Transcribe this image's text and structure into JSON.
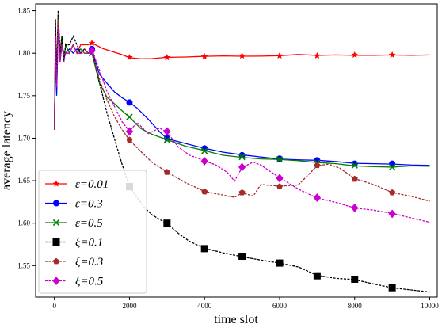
{
  "chart_data": {
    "type": "line",
    "xlabel": "time slot",
    "ylabel": "average latency",
    "xlim": [
      -500,
      10200
    ],
    "ylim": [
      1.513,
      1.858
    ],
    "x_ticks": [
      0,
      2000,
      4000,
      6000,
      8000,
      10000
    ],
    "y_ticks": [
      1.55,
      1.6,
      1.65,
      1.7,
      1.75,
      1.8,
      1.85
    ],
    "x_tick_labels": [
      "0",
      "2000",
      "4000",
      "6000",
      "8000",
      "10000"
    ],
    "y_tick_labels": [
      "1.55",
      "1.60",
      "1.65",
      "1.70",
      "1.75",
      "1.80",
      "1.85"
    ],
    "grid": false,
    "legend_position": "lower-left",
    "series": [
      {
        "name": "ε=0.01",
        "color": "#ff0000",
        "marker": "star",
        "linestyle": "solid",
        "x": [
          0,
          30,
          60,
          100,
          150,
          200,
          250,
          300,
          400,
          500,
          600,
          700,
          800,
          900,
          1000,
          1100,
          1300,
          1500,
          1800,
          2000,
          2300,
          2600,
          3000,
          3500,
          4000,
          4500,
          5000,
          5500,
          6000,
          6500,
          7000,
          7500,
          8000,
          8500,
          9000,
          9500,
          10000
        ],
        "y": [
          1.71,
          1.83,
          1.77,
          1.84,
          1.8,
          1.82,
          1.79,
          1.81,
          1.8,
          1.81,
          1.8,
          1.81,
          1.81,
          1.81,
          1.812,
          1.81,
          1.805,
          1.802,
          1.798,
          1.795,
          1.794,
          1.794,
          1.795,
          1.795,
          1.796,
          1.797,
          1.797,
          1.797,
          1.797,
          1.798,
          1.797,
          1.798,
          1.798,
          1.798,
          1.798,
          1.797,
          1.798
        ],
        "marker_x": [
          1000,
          2000,
          3000,
          4000,
          5000,
          6000,
          7000,
          8000,
          9000
        ],
        "marker_y": [
          1.812,
          1.795,
          1.795,
          1.796,
          1.797,
          1.797,
          1.797,
          1.798,
          1.798
        ]
      },
      {
        "name": "ε=0.3",
        "color": "#0000ff",
        "marker": "circle",
        "linestyle": "solid",
        "x": [
          0,
          30,
          60,
          100,
          150,
          200,
          250,
          300,
          400,
          500,
          600,
          700,
          800,
          900,
          1000,
          1200,
          1400,
          1600,
          1800,
          2000,
          2200,
          2500,
          2800,
          3000,
          3500,
          4000,
          4500,
          5000,
          5500,
          6000,
          6500,
          7000,
          7500,
          8000,
          8500,
          9000,
          9500,
          10000
        ],
        "y": [
          1.71,
          1.8,
          1.75,
          1.83,
          1.79,
          1.81,
          1.8,
          1.8,
          1.805,
          1.8,
          1.805,
          1.8,
          1.805,
          1.8,
          1.805,
          1.775,
          1.765,
          1.755,
          1.748,
          1.742,
          1.735,
          1.722,
          1.708,
          1.7,
          1.694,
          1.688,
          1.683,
          1.68,
          1.678,
          1.676,
          1.675,
          1.674,
          1.672,
          1.67,
          1.67,
          1.67,
          1.669,
          1.668
        ],
        "marker_x": [
          1000,
          2000,
          3000,
          4000,
          5000,
          6000,
          7000,
          8000,
          9000
        ],
        "marker_y": [
          1.805,
          1.742,
          1.7,
          1.688,
          1.68,
          1.676,
          1.674,
          1.67,
          1.67
        ]
      },
      {
        "name": "ε=0.5",
        "color": "#008000",
        "marker": "x",
        "linestyle": "solid",
        "x": [
          0,
          30,
          60,
          100,
          150,
          200,
          250,
          300,
          400,
          500,
          600,
          700,
          800,
          900,
          1000,
          1200,
          1400,
          1600,
          1800,
          2000,
          2300,
          2600,
          3000,
          3500,
          4000,
          4500,
          5000,
          5500,
          6000,
          6500,
          7000,
          7500,
          8000,
          8500,
          9000,
          9500,
          10000
        ],
        "y": [
          1.71,
          1.82,
          1.76,
          1.845,
          1.79,
          1.82,
          1.79,
          1.81,
          1.8,
          1.81,
          1.8,
          1.805,
          1.8,
          1.8,
          1.8,
          1.765,
          1.748,
          1.74,
          1.732,
          1.725,
          1.712,
          1.705,
          1.698,
          1.69,
          1.685,
          1.68,
          1.678,
          1.676,
          1.675,
          1.673,
          1.671,
          1.67,
          1.668,
          1.667,
          1.666,
          1.667,
          1.667
        ],
        "marker_x": [
          1000,
          2000,
          3000,
          4000,
          5000,
          6000,
          7000,
          8000,
          9000
        ],
        "marker_y": [
          1.8,
          1.725,
          1.698,
          1.685,
          1.678,
          1.675,
          1.671,
          1.668,
          1.666
        ]
      },
      {
        "name": "ξ=0.1",
        "color": "#000000",
        "marker": "square",
        "linestyle": "dashed",
        "x": [
          0,
          30,
          60,
          100,
          150,
          200,
          250,
          300,
          400,
          500,
          600,
          700,
          800,
          900,
          1000,
          1200,
          1400,
          1600,
          1800,
          2000,
          2200,
          2400,
          2600,
          2800,
          3000,
          3300,
          3600,
          4000,
          4500,
          5000,
          5500,
          6000,
          6500,
          7000,
          7500,
          8000,
          8500,
          9000,
          9500,
          10000
        ],
        "y": [
          1.71,
          1.84,
          1.77,
          1.85,
          1.8,
          1.82,
          1.79,
          1.81,
          1.81,
          1.82,
          1.81,
          1.8,
          1.805,
          1.8,
          1.805,
          1.765,
          1.73,
          1.7,
          1.67,
          1.643,
          1.63,
          1.618,
          1.61,
          1.605,
          1.6,
          1.588,
          1.578,
          1.57,
          1.565,
          1.561,
          1.557,
          1.553,
          1.548,
          1.538,
          1.535,
          1.534,
          1.529,
          1.524,
          1.521,
          1.519
        ],
        "marker_x": [
          2000,
          3000,
          4000,
          5000,
          6000,
          7000,
          8000,
          9000
        ],
        "marker_y": [
          1.643,
          1.6,
          1.57,
          1.561,
          1.553,
          1.538,
          1.534,
          1.524
        ]
      },
      {
        "name": "ξ=0.3",
        "color": "#a52a2a",
        "marker": "pentagon",
        "linestyle": "dashed",
        "x": [
          0,
          30,
          60,
          100,
          150,
          200,
          250,
          300,
          400,
          500,
          600,
          700,
          800,
          900,
          1000,
          1200,
          1400,
          1600,
          1800,
          2000,
          2300,
          2600,
          3000,
          3500,
          4000,
          4500,
          4800,
          5000,
          5300,
          5500,
          6000,
          6500,
          7000,
          7300,
          7600,
          8000,
          8500,
          9000,
          9500,
          10000
        ],
        "y": [
          1.71,
          1.82,
          1.76,
          1.84,
          1.79,
          1.81,
          1.8,
          1.8,
          1.8,
          1.81,
          1.8,
          1.8,
          1.805,
          1.8,
          1.8,
          1.77,
          1.745,
          1.725,
          1.71,
          1.698,
          1.685,
          1.672,
          1.66,
          1.647,
          1.637,
          1.633,
          1.631,
          1.636,
          1.632,
          1.645,
          1.643,
          1.645,
          1.668,
          1.67,
          1.665,
          1.652,
          1.645,
          1.636,
          1.632,
          1.626
        ],
        "marker_x": [
          2000,
          3000,
          4000,
          5000,
          6000,
          7000,
          8000,
          9000
        ],
        "marker_y": [
          1.698,
          1.66,
          1.637,
          1.636,
          1.643,
          1.668,
          1.652,
          1.636
        ]
      },
      {
        "name": "ξ=0.5",
        "color": "#cc00cc",
        "marker": "diamond",
        "linestyle": "dashed",
        "x": [
          0,
          30,
          60,
          100,
          150,
          200,
          250,
          300,
          400,
          500,
          600,
          700,
          800,
          900,
          1000,
          1200,
          1400,
          1600,
          1800,
          2000,
          2200,
          2500,
          2800,
          3000,
          3300,
          3600,
          4000,
          4300,
          4600,
          4800,
          5000,
          5300,
          5500,
          6000,
          6500,
          7000,
          7500,
          8000,
          8500,
          9000,
          9500,
          10000
        ],
        "y": [
          1.71,
          1.82,
          1.76,
          1.83,
          1.79,
          1.81,
          1.79,
          1.8,
          1.8,
          1.81,
          1.8,
          1.8,
          1.8,
          1.8,
          1.803,
          1.78,
          1.755,
          1.738,
          1.72,
          1.708,
          1.718,
          1.705,
          1.712,
          1.708,
          1.69,
          1.68,
          1.673,
          1.668,
          1.66,
          1.65,
          1.666,
          1.672,
          1.668,
          1.653,
          1.64,
          1.63,
          1.625,
          1.618,
          1.615,
          1.611,
          1.606,
          1.601
        ],
        "marker_x": [
          1000,
          2000,
          3000,
          4000,
          5000,
          6000,
          7000,
          8000,
          9000
        ],
        "marker_y": [
          1.803,
          1.708,
          1.708,
          1.673,
          1.666,
          1.653,
          1.63,
          1.618,
          1.611
        ]
      }
    ]
  }
}
